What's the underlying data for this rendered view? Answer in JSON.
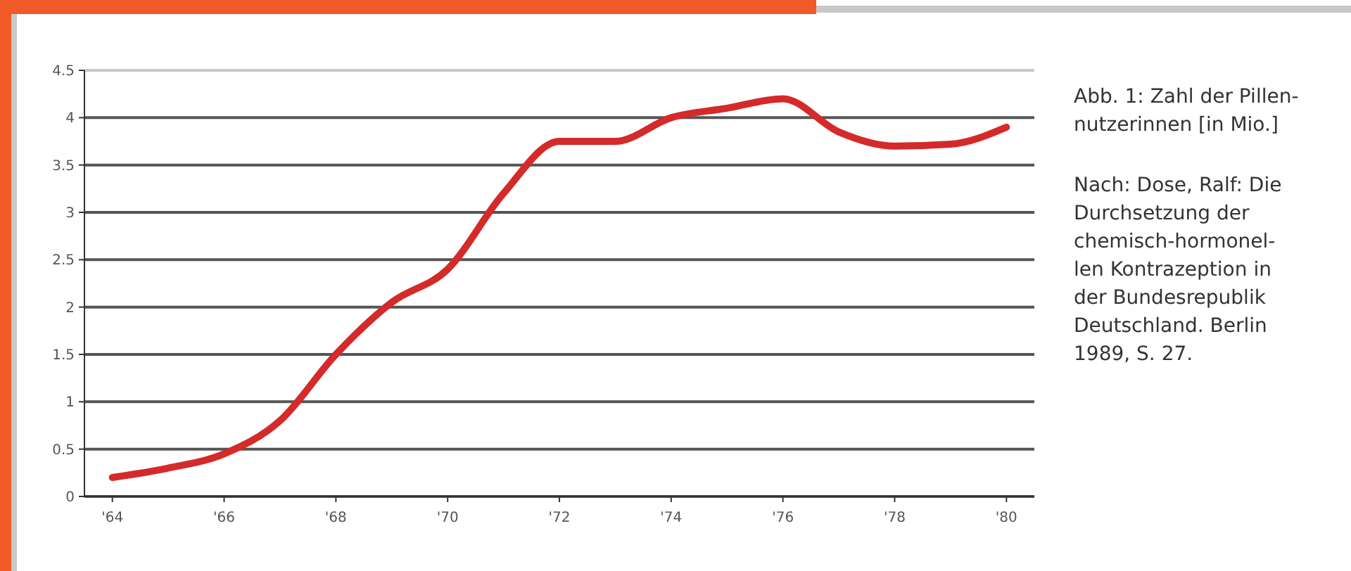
{
  "chart_data": {
    "type": "line",
    "title": "Abb. 1: Zahl der Pillen-\nnutzerinnen [in Mio.]",
    "annotations": [
      "Nach: Dose, Ralf: Die\nDurchsetzung der\nchemisch-hormonel-\nlen Kontrazeption in\nder Bundesrepublik\nDeutschland. Berlin\n1989, S. 27."
    ],
    "x": [
      1964,
      1965,
      1966,
      1967,
      1968,
      1969,
      1970,
      1971,
      1972,
      1973,
      1974,
      1975,
      1976,
      1977,
      1978,
      1979,
      1980
    ],
    "series": [
      {
        "color": "#d42a2a",
        "values": [
          0.2,
          0.3,
          0.45,
          0.8,
          1.5,
          2.05,
          2.4,
          3.2,
          3.75,
          3.75,
          4.0,
          4.1,
          4.2,
          3.85,
          3.7,
          3.72,
          3.9
        ]
      }
    ],
    "xlim": [
      1963.5,
      1980.5
    ],
    "xticks": [
      {
        "value": 1964,
        "label": "'64"
      },
      {
        "value": 1966,
        "label": "'66"
      },
      {
        "value": 1968,
        "label": "'68"
      },
      {
        "value": 1970,
        "label": "'70"
      },
      {
        "value": 1972,
        "label": "'72"
      },
      {
        "value": 1974,
        "label": "'74"
      },
      {
        "value": 1976,
        "label": "'76"
      },
      {
        "value": 1978,
        "label": "'78"
      },
      {
        "value": 1980,
        "label": "'80"
      }
    ],
    "ylim": [
      0,
      4.5
    ],
    "yticks": [
      0,
      0.5,
      1,
      1.5,
      2,
      2.5,
      3,
      3.5,
      4,
      4.5
    ],
    "grid": "y",
    "marker": "none",
    "line_style": "solid"
  }
}
